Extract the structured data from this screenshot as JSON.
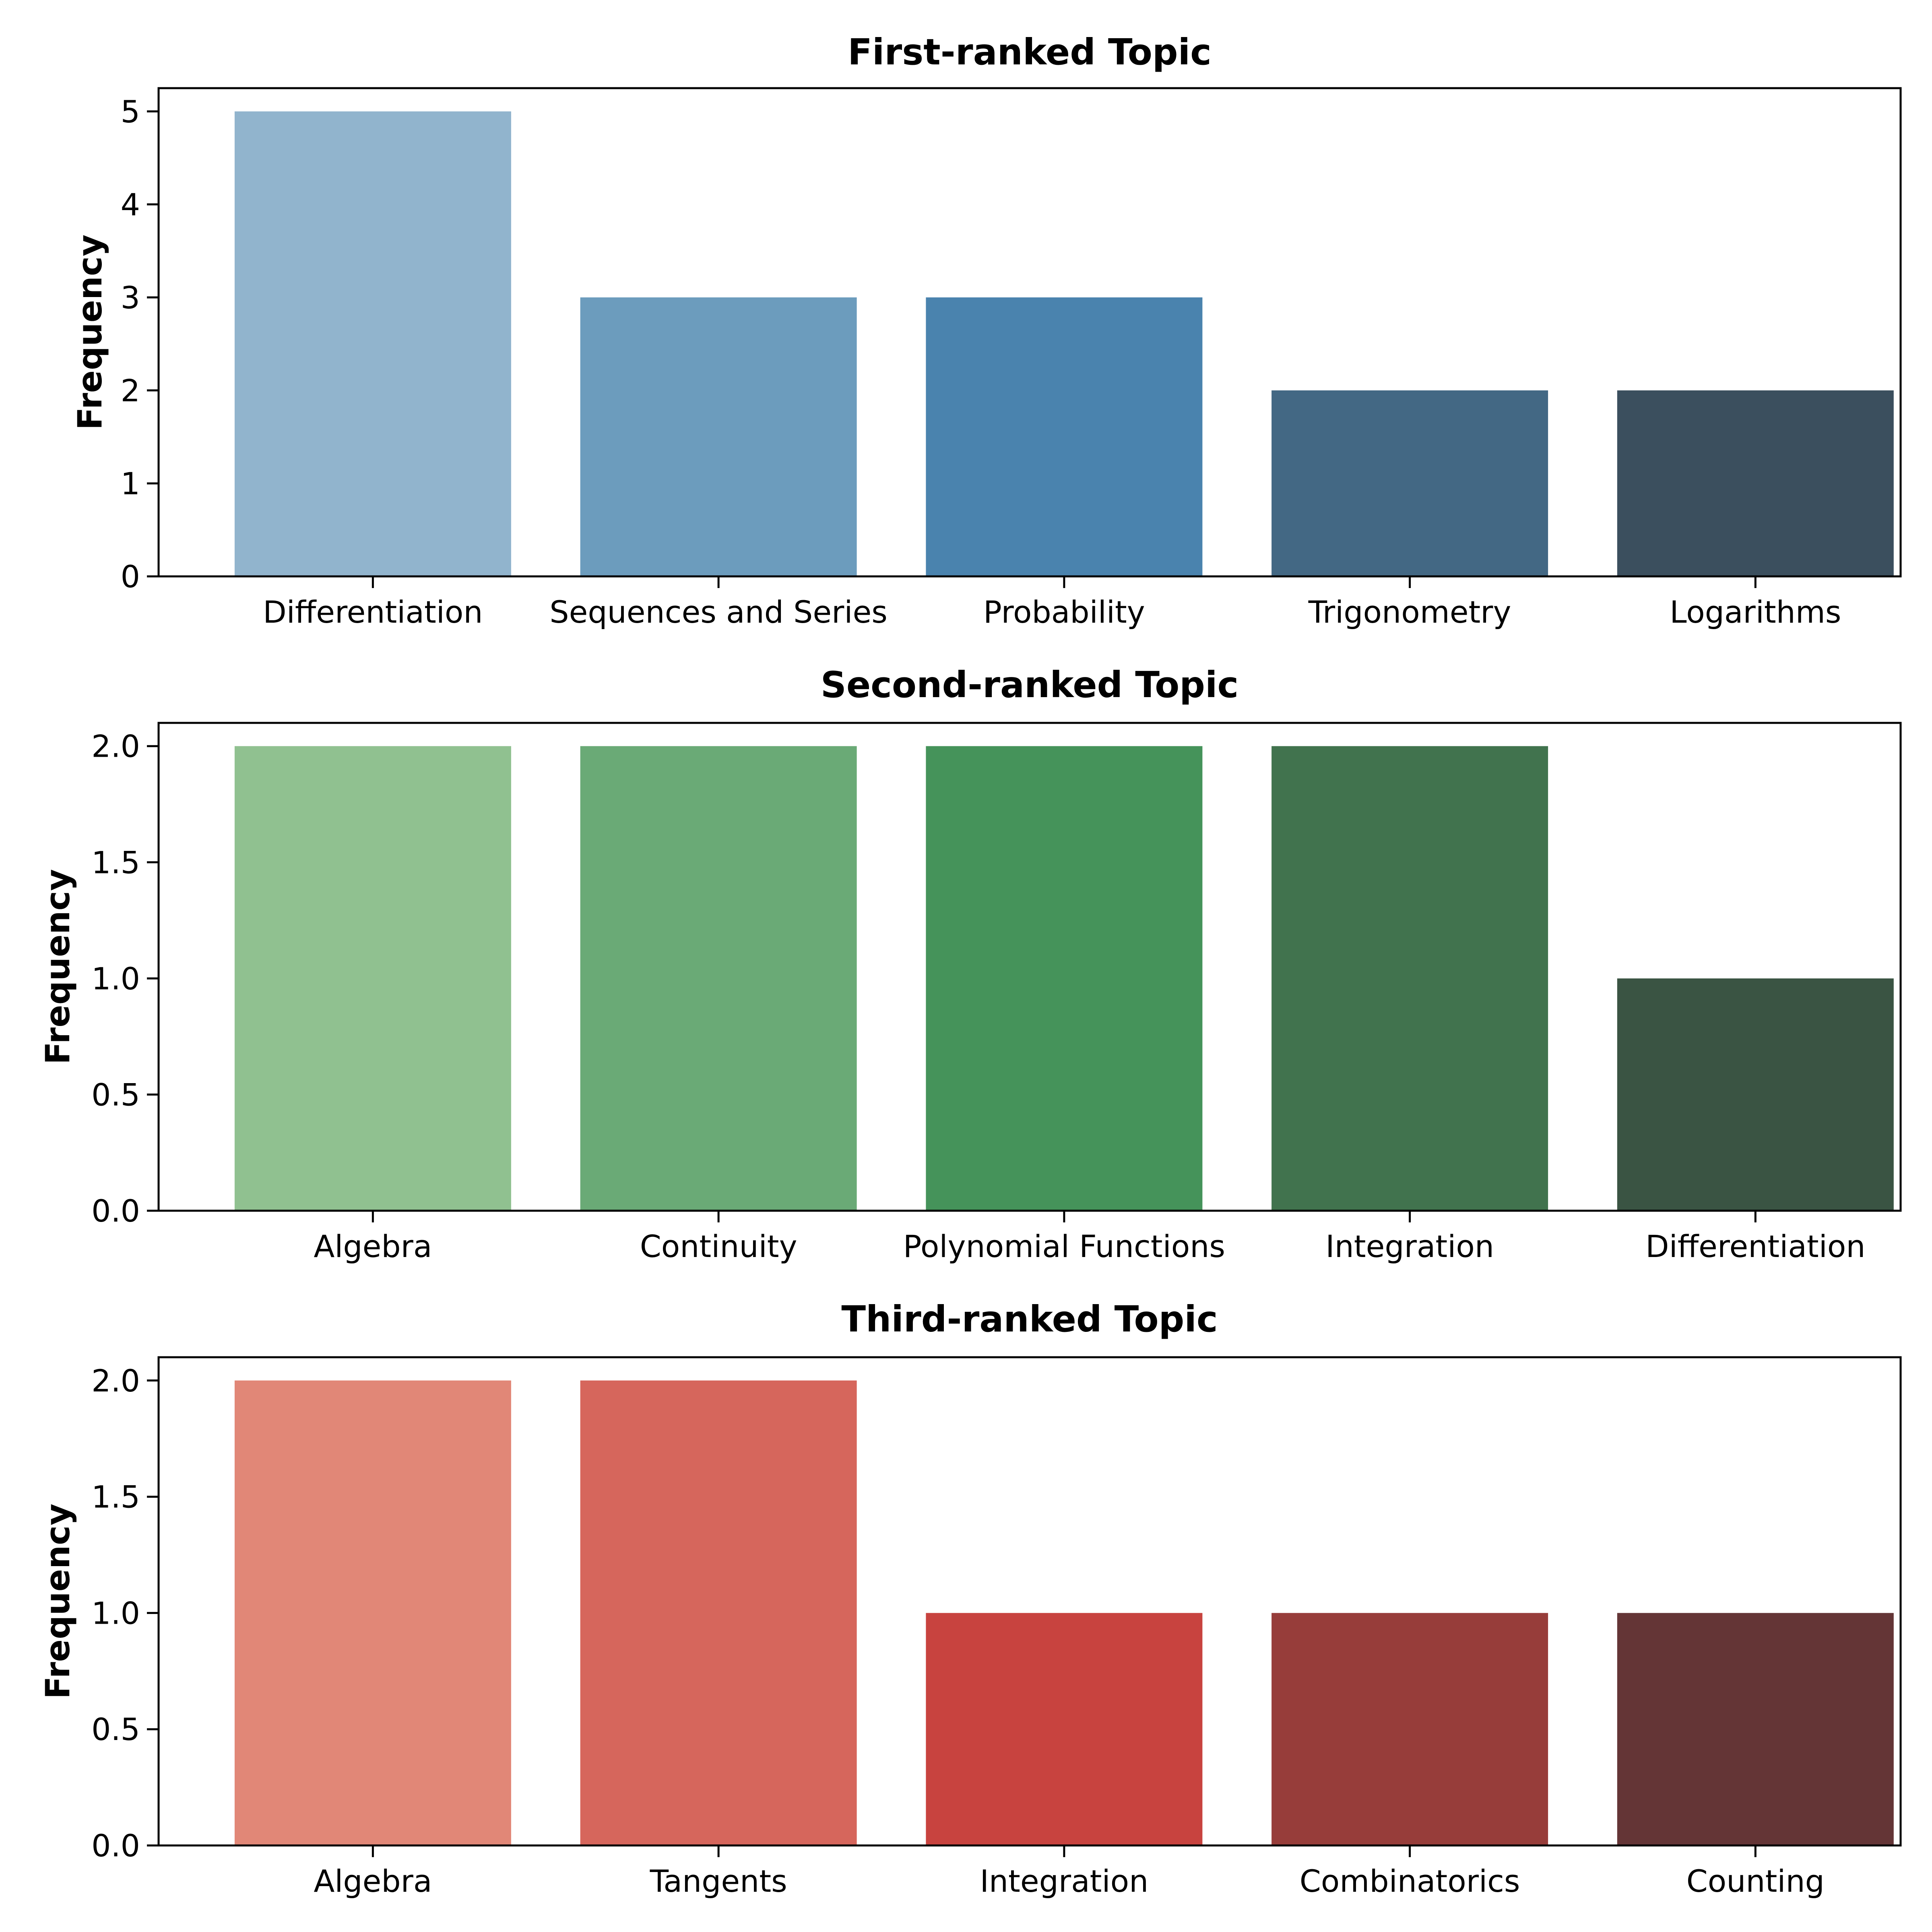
{
  "chart_data": [
    {
      "type": "bar",
      "title": "First-ranked Topic",
      "xlabel": "",
      "ylabel": "Frequency",
      "categories": [
        "Differentiation",
        "Sequences and Series",
        "Probability",
        "Trigonometry",
        "Logarithms"
      ],
      "values": [
        5,
        3,
        3,
        2,
        2
      ],
      "colors": [
        "#91b4cd",
        "#6c9cbd",
        "#4a83ae",
        "#436884",
        "#3b4f5e"
      ],
      "ylim": [
        0,
        5.25
      ],
      "yticks": [
        0,
        1,
        2,
        3,
        4,
        5
      ],
      "ytick_labels": [
        "0",
        "1",
        "2",
        "3",
        "4",
        "5"
      ],
      "grid": false
    },
    {
      "type": "bar",
      "title": "Second-ranked Topic",
      "xlabel": "",
      "ylabel": "Frequency",
      "categories": [
        "Algebra",
        "Continuity",
        "Polynomial Functions",
        "Integration",
        "Differentiation"
      ],
      "values": [
        2,
        2,
        2,
        2,
        1
      ],
      "colors": [
        "#90c190",
        "#6aaa76",
        "#45935a",
        "#41734e",
        "#3a5443"
      ],
      "ylim": [
        0,
        2.1
      ],
      "yticks": [
        0,
        0.5,
        1,
        1.5,
        2
      ],
      "ytick_labels": [
        "0.0",
        "0.5",
        "1.0",
        "1.5",
        "2.0"
      ],
      "grid": false
    },
    {
      "type": "bar",
      "title": "Third-ranked Topic",
      "xlabel": "",
      "ylabel": "Frequency",
      "categories": [
        "Algebra",
        "Tangents",
        "Integration",
        "Combinatorics",
        "Counting"
      ],
      "values": [
        2,
        2,
        1,
        1,
        1
      ],
      "colors": [
        "#e18777",
        "#d6665c",
        "#c8433f",
        "#973d3a",
        "#643536"
      ],
      "ylim": [
        0,
        2.1
      ],
      "yticks": [
        0,
        0.5,
        1,
        1.5,
        2
      ],
      "ytick_labels": [
        "0.0",
        "0.5",
        "1.0",
        "1.5",
        "2.0"
      ],
      "grid": false
    }
  ]
}
